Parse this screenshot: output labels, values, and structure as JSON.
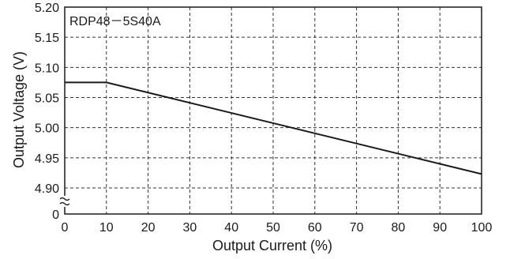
{
  "chart_data": {
    "type": "line",
    "title": "",
    "annotation": "RDP48－5S40A",
    "xlabel": "Output Current (%)",
    "ylabel": "Output Voltage (V)",
    "xlim": [
      0,
      100
    ],
    "ylim": [
      4.85,
      5.2
    ],
    "axis_break": true,
    "x_ticks": [
      0,
      10,
      20,
      30,
      40,
      50,
      60,
      70,
      80,
      90,
      100
    ],
    "x_tick_labels": [
      "0",
      "10",
      "20",
      "30",
      "40",
      "50",
      "60",
      "70",
      "80",
      "90",
      "100"
    ],
    "y_ticks": [
      4.9,
      4.95,
      5.0,
      5.05,
      5.1,
      5.15,
      5.2
    ],
    "y_tick_labels": [
      "4.90",
      "4.95",
      "5.00",
      "5.05",
      "5.10",
      "5.15",
      "5.20"
    ],
    "y_zero_label": "0",
    "break_symbol": "≈",
    "grid": true,
    "grid_style": "dashed",
    "line_color": "#1a1a1a",
    "series": [
      {
        "x": [
          0,
          10,
          100
        ],
        "y": [
          5.075,
          5.075,
          4.923
        ]
      }
    ]
  }
}
